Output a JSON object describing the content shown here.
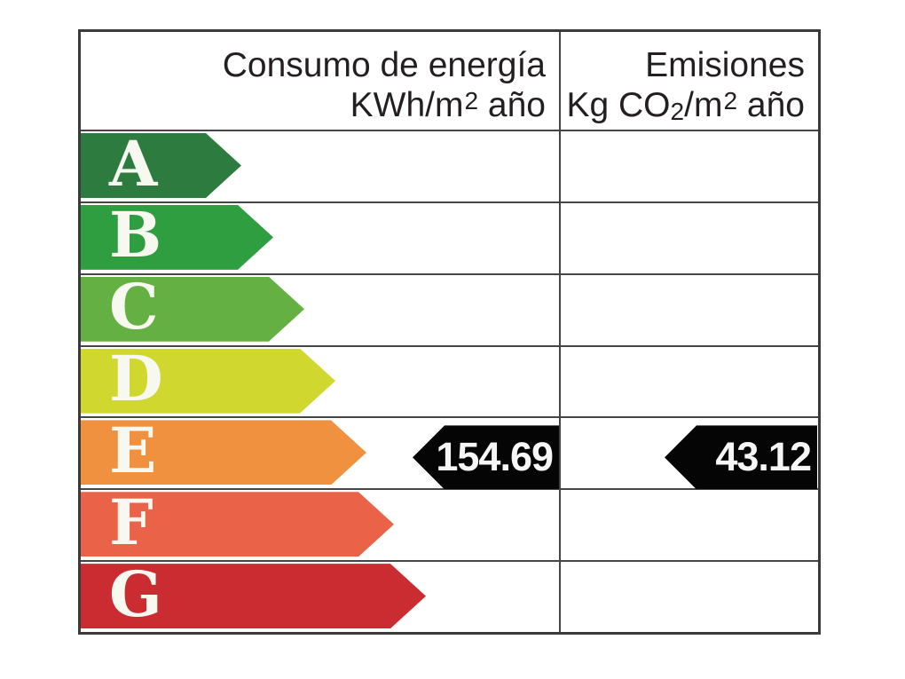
{
  "header": {
    "consumo": {
      "line1": "Consumo de energía",
      "line2_pre": "KWh/m",
      "line2_sup": "2",
      "line2_post": " año"
    },
    "emisiones": {
      "line1": "Emisiones",
      "line2_pre": "Kg CO",
      "line2_sub": "2",
      "line2_mid": "/m",
      "line2_sup": "2",
      "line2_post": " año"
    }
  },
  "ratings": [
    {
      "letter": "A",
      "color": "#2e7b40"
    },
    {
      "letter": "B",
      "color": "#2f9e41"
    },
    {
      "letter": "C",
      "color": "#64b043"
    },
    {
      "letter": "D",
      "color": "#d0d72f"
    },
    {
      "letter": "E",
      "color": "#f0913f"
    },
    {
      "letter": "F",
      "color": "#ea6349"
    },
    {
      "letter": "G",
      "color": "#cb2c31"
    }
  ],
  "values": {
    "consumo": "154.69",
    "emisiones": "43.12",
    "rated_letter": "E",
    "marker_color": "#050505"
  },
  "chart_data": {
    "type": "bar",
    "title": "",
    "categories": [
      "A",
      "B",
      "C",
      "D",
      "E",
      "F",
      "G"
    ],
    "bar_colors": [
      "#2e7b40",
      "#2f9e41",
      "#64b043",
      "#d0d72f",
      "#f0913f",
      "#ea6349",
      "#cb2c31"
    ],
    "bar_relative_lengths": [
      181,
      217,
      252,
      287,
      322,
      353,
      389
    ],
    "columns": [
      "Consumo de energía KWh/m2 año",
      "Emisiones Kg CO2/m2 año"
    ],
    "series": [
      {
        "name": "Consumo de energía KWh/m2 año",
        "rating": "E",
        "value": 154.69
      },
      {
        "name": "Emisiones Kg CO2/m2 año",
        "rating": "E",
        "value": 43.12
      }
    ],
    "legend_position": "none",
    "grid": "table-lines",
    "annotation_style": "black left-pointing value arrows on rated row"
  }
}
